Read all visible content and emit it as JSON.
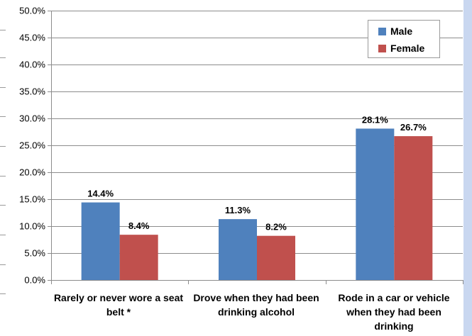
{
  "chart_data": {
    "type": "bar",
    "categories": [
      "Rarely or never wore a seat belt *",
      "Drove when they had been drinking alcohol",
      "Rode in a car or vehicle when they had been drinking"
    ],
    "series": [
      {
        "name": "Male",
        "color": "#4f81bd",
        "values": [
          14.4,
          11.3,
          28.1
        ]
      },
      {
        "name": "Female",
        "color": "#c0504d",
        "values": [
          8.4,
          8.2,
          26.7
        ]
      }
    ],
    "data_labels": {
      "Male": [
        "14.4%",
        "11.3%",
        "28.1%"
      ],
      "Female": [
        "8.4%",
        "8.2%",
        "26.7%"
      ]
    },
    "y_ticks": [
      "0.0%",
      "5.0%",
      "10.0%",
      "15.0%",
      "20.0%",
      "25.0%",
      "30.0%",
      "35.0%",
      "40.0%",
      "45.0%",
      "50.0%"
    ],
    "ylim": [
      0,
      50
    ],
    "grid": true,
    "legend": "top-right"
  }
}
